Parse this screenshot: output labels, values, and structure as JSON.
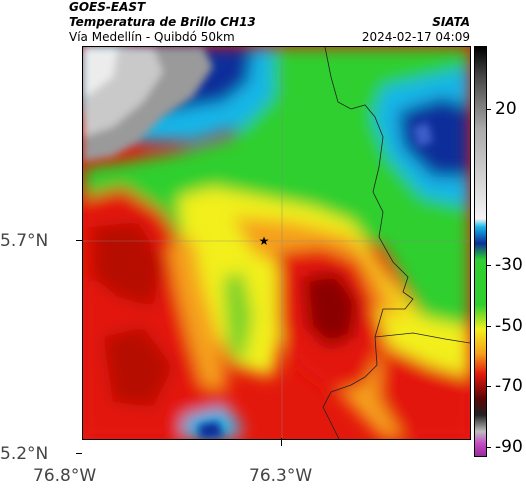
{
  "header": {
    "satellite": "GOES-EAST",
    "product": "Temperatura de Brillo CH13",
    "route": "Vía Medellín - Quibdó 50km",
    "org": "SIATA",
    "datetime": "2024-02-17 04:09"
  },
  "map": {
    "lat_ticks": [
      "5.7°N",
      "5.2°N"
    ],
    "lon_ticks": [
      "76.8°W",
      "76.3°W"
    ],
    "marker": "star-marker"
  },
  "colorbar": {
    "ticks": [
      "20",
      "-30",
      "-50",
      "-70",
      "-90"
    ],
    "colors": {
      "cold_top": "#ffffff",
      "gray": "#9a9a9a",
      "blue": "#0b2f9a",
      "cyan": "#17b6e8",
      "green": "#2ecf2e",
      "yellow": "#f2ef1f",
      "orange": "#f5a01a",
      "red": "#e3180c",
      "dark_red": "#5a0707",
      "magenta": "#c44bc4"
    }
  }
}
